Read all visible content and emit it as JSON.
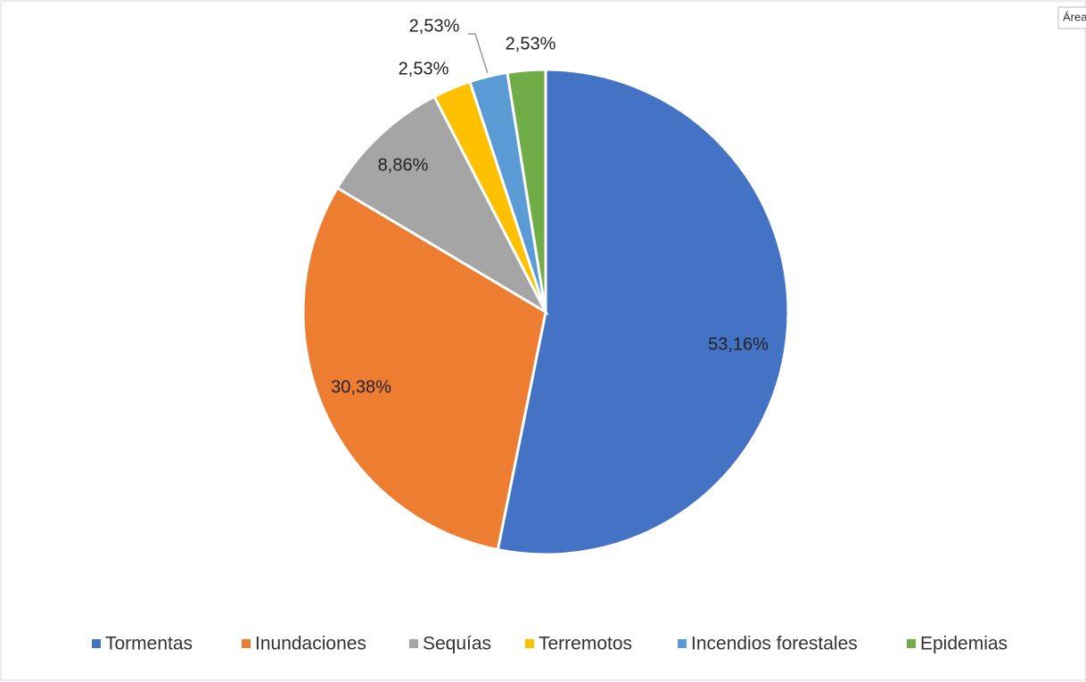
{
  "chart_data": {
    "type": "pie",
    "categories": [
      "Tormentas",
      "Inundaciones",
      "Sequías",
      "Terremotos",
      "Incendios forestales",
      "Epidemias"
    ],
    "values": [
      53.16,
      30.38,
      8.86,
      2.53,
      2.53,
      2.53
    ],
    "value_labels": [
      "53,16%",
      "30,38%",
      "8,86%",
      "2,53%",
      "2,53%",
      "2,53%"
    ],
    "colors": [
      "#4472c4",
      "#ed7d31",
      "#a5a5a5",
      "#ffc000",
      "#5b9bd5",
      "#70ad47"
    ],
    "legend": "bottom"
  },
  "tooltip": "Área"
}
